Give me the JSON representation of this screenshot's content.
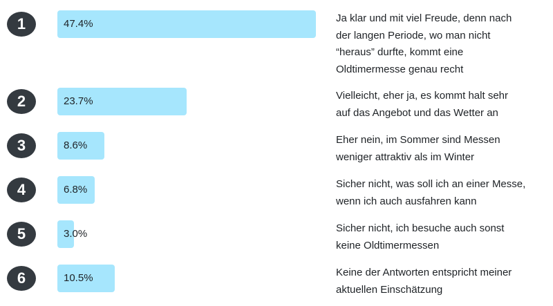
{
  "chart_data": {
    "type": "bar",
    "orientation": "horizontal",
    "categories": [
      "1",
      "2",
      "3",
      "4",
      "5",
      "6"
    ],
    "values": [
      47.4,
      23.7,
      8.6,
      6.8,
      3.0,
      10.5
    ],
    "value_labels": [
      "47.4%",
      "23.7%",
      "8.6%",
      "6.8%",
      "3.0%",
      "10.5%"
    ],
    "answers": [
      "Ja klar und mit viel Freude, denn nach\nder langen Periode, wo man nicht\n“heraus” durfte, kommt eine\nOldtimermesse genau recht",
      "Vielleicht, eher ja, es kommt halt sehr\nauf das Angebot und das Wetter an",
      "Eher nein, im Sommer sind Messen\nweniger attraktiv als im Winter",
      "Sicher nicht, was soll ich an einer Messe,\nwenn ich auch ausfahren kann",
      "Sicher nicht, ich besuche auch sonst\nkeine Oldtimermessen",
      "Keine der Antworten entspricht meiner\naktuellen Einschätzung"
    ],
    "unit": "%",
    "colors": {
      "bar": "#a6e6fd",
      "badge": "#343a40"
    }
  }
}
